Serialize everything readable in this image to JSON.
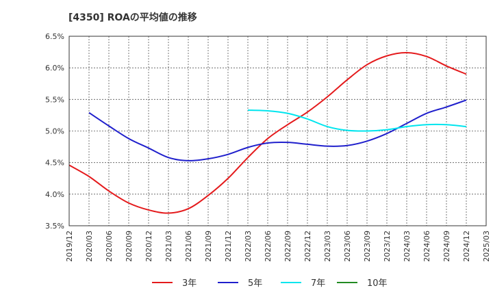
{
  "chart_data": {
    "type": "line",
    "title": "[4350]  ROAの平均値の推移",
    "xlabel": "",
    "ylabel": "",
    "ylim": [
      3.5,
      6.5
    ],
    "y_ticks": [
      "3.5%",
      "4.0%",
      "4.5%",
      "5.0%",
      "5.5%",
      "6.0%",
      "6.5%"
    ],
    "x_ticks": [
      "2019/12",
      "2020/03",
      "2020/06",
      "2020/09",
      "2020/12",
      "2021/03",
      "2021/06",
      "2021/09",
      "2021/12",
      "2022/03",
      "2022/06",
      "2022/09",
      "2022/12",
      "2023/03",
      "2023/06",
      "2023/09",
      "2023/12",
      "2024/03",
      "2024/06",
      "2024/09",
      "2024/12",
      "2025/03"
    ],
    "grid": true,
    "legend_position": "bottom",
    "series": [
      {
        "name": "3年",
        "color": "#e41a1c",
        "values": [
          4.46,
          4.28,
          4.05,
          3.86,
          3.75,
          3.7,
          3.77,
          3.98,
          4.25,
          4.58,
          4.88,
          5.1,
          5.3,
          5.54,
          5.81,
          6.05,
          6.19,
          6.24,
          6.18,
          6.03,
          5.9,
          null
        ]
      },
      {
        "name": "5年",
        "color": "#1f1fcc",
        "values": [
          null,
          5.29,
          5.08,
          4.88,
          4.73,
          4.58,
          4.53,
          4.56,
          4.63,
          4.74,
          4.81,
          4.82,
          4.79,
          4.76,
          4.77,
          4.84,
          4.96,
          5.12,
          5.28,
          5.38,
          5.49,
          null
        ]
      },
      {
        "name": "7年",
        "color": "#00e5ee",
        "values": [
          null,
          null,
          null,
          null,
          null,
          null,
          null,
          null,
          null,
          5.33,
          5.32,
          5.28,
          5.19,
          5.07,
          5.01,
          5.0,
          5.02,
          5.07,
          5.1,
          5.1,
          5.07,
          null
        ]
      },
      {
        "name": "10年",
        "color": "#228b22",
        "values": [
          null,
          null,
          null,
          null,
          null,
          null,
          null,
          null,
          null,
          null,
          null,
          null,
          null,
          null,
          null,
          null,
          null,
          null,
          null,
          null,
          null,
          null
        ]
      }
    ]
  }
}
